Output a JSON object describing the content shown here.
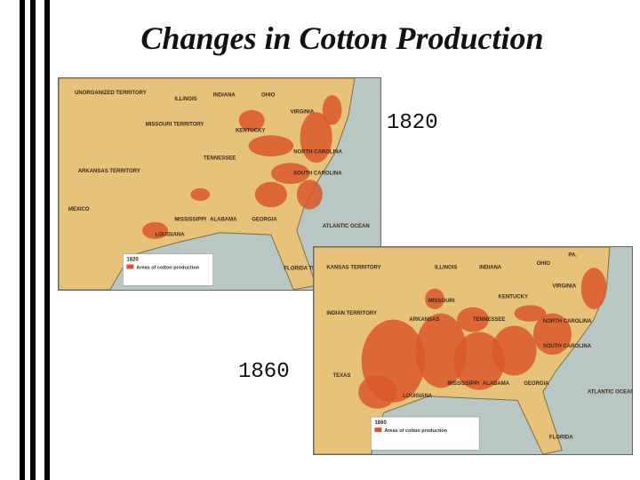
{
  "title": "Changes in Cotton Production",
  "maps": [
    {
      "year_label": "1820",
      "labels": [
        "UNORGANIZED TERRITORY",
        "ILLINOIS",
        "INDIANA",
        "OHIO",
        "MISSOURI TERRITORY",
        "KENTUCKY",
        "VIRGINIA",
        "TENNESSEE",
        "NORTH CAROLINA",
        "ARKANSAS TERRITORY",
        "SOUTH CAROLINA",
        "MEXICO",
        "MISSISSIPPI",
        "ALABAMA",
        "GEORGIA",
        "LOUISIANA",
        "ATLANTIC OCEAN",
        "FLORIDA TERRITORY"
      ],
      "legend": {
        "year": "1820",
        "text": "Areas of cotton production"
      }
    },
    {
      "year_label": "1860",
      "labels": [
        "KANSAS TERRITORY",
        "ILLINOIS",
        "INDIANA",
        "OHIO",
        "PA.",
        "VIRGINIA",
        "MISSOURI",
        "KENTUCKY",
        "INDIAN TERRITORY",
        "ARKANSAS",
        "TENNESSEE",
        "NORTH CAROLINA",
        "SOUTH CAROLINA",
        "TEXAS",
        "MISSISSIPPI",
        "ALABAMA",
        "GEORGIA",
        "LOUISIANA",
        "ATLANTIC OCEAN",
        "FLORIDA"
      ],
      "legend": {
        "year": "1860",
        "text": "Areas of cotton production"
      }
    }
  ]
}
